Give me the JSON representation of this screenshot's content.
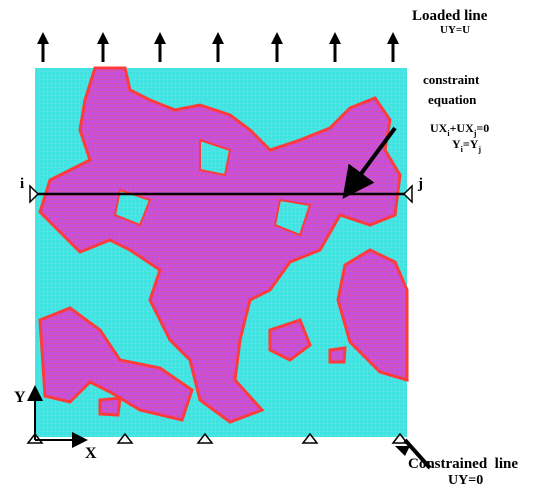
{
  "loaded_line": {
    "title": "Loaded line",
    "condition": "UY=U"
  },
  "constraint": {
    "title_lines": [
      "constraint",
      "equation"
    ],
    "equation_1": [
      "UX",
      "i",
      "+UX",
      "j",
      "=0"
    ],
    "equation_2": [
      "Y",
      "i",
      "=Y",
      "j"
    ]
  },
  "nodes": {
    "left": "i",
    "right": "j"
  },
  "axes": {
    "y": "Y",
    "x": "X"
  },
  "constrained_line": {
    "title": "Constrained  line",
    "condition": "UY=0"
  }
}
